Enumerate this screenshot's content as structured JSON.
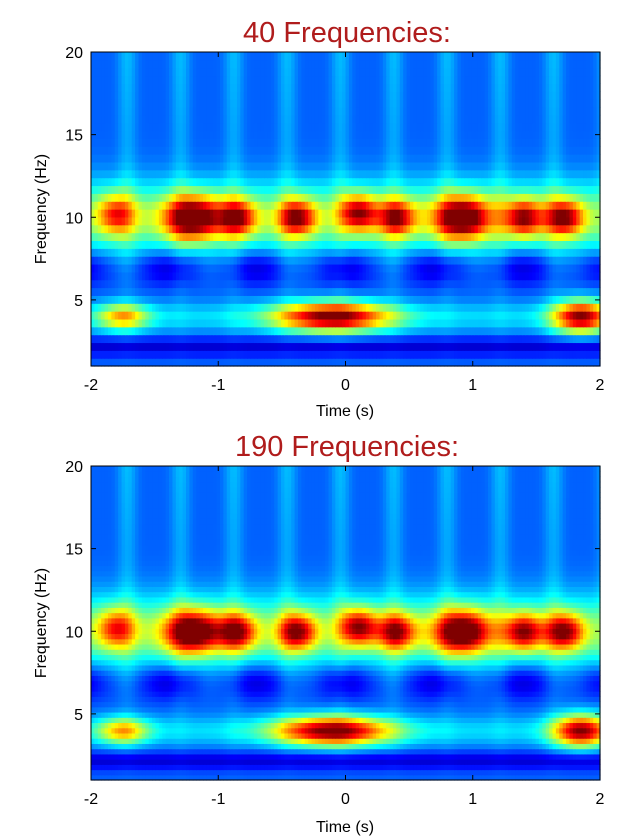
{
  "chart_data": [
    {
      "type": "heatmap",
      "title": "40 Frequencies:",
      "xlabel": "Time (s)",
      "ylabel": "Frequency (Hz)",
      "xlim": [
        -2,
        2
      ],
      "ylim": [
        1,
        20
      ],
      "xticks": [
        -2,
        -1,
        0,
        1,
        2
      ],
      "yticks": [
        5,
        10,
        15,
        20
      ],
      "n_frequencies": 40,
      "colormap": "jet",
      "blobs": [
        {
          "t": -0.1,
          "f": 4.0,
          "st": 0.45,
          "sf": 0.9,
          "a": 1.0
        },
        {
          "t": 1.85,
          "f": 4.0,
          "st": 0.22,
          "sf": 1.0,
          "a": 0.95
        },
        {
          "t": -1.75,
          "f": 4.0,
          "st": 0.2,
          "sf": 0.8,
          "a": 0.55
        },
        {
          "t": -1.2,
          "f": 10.0,
          "st": 0.22,
          "sf": 1.3,
          "a": 0.95
        },
        {
          "t": -0.85,
          "f": 10.0,
          "st": 0.15,
          "sf": 1.1,
          "a": 0.7
        },
        {
          "t": -0.38,
          "f": 10.0,
          "st": 0.15,
          "sf": 1.1,
          "a": 0.75
        },
        {
          "t": 0.1,
          "f": 10.3,
          "st": 0.15,
          "sf": 1.1,
          "a": 0.72
        },
        {
          "t": 0.4,
          "f": 10.0,
          "st": 0.15,
          "sf": 1.1,
          "a": 0.7
        },
        {
          "t": 0.92,
          "f": 10.0,
          "st": 0.22,
          "sf": 1.3,
          "a": 0.95
        },
        {
          "t": 1.4,
          "f": 10.0,
          "st": 0.15,
          "sf": 1.1,
          "a": 0.72
        },
        {
          "t": 1.72,
          "f": 10.0,
          "st": 0.15,
          "sf": 1.1,
          "a": 0.75
        },
        {
          "t": -1.8,
          "f": 10.2,
          "st": 0.15,
          "sf": 1.2,
          "a": 0.55
        }
      ]
    },
    {
      "type": "heatmap",
      "title": "190 Frequencies:",
      "xlabel": "Time (s)",
      "ylabel": "Frequency (Hz)",
      "xlim": [
        -2,
        2
      ],
      "ylim": [
        1,
        20
      ],
      "xticks": [
        -2,
        -1,
        0,
        1,
        2
      ],
      "yticks": [
        5,
        10,
        15,
        20
      ],
      "n_frequencies": 190,
      "colormap": "jet",
      "blobs": [
        {
          "t": -0.1,
          "f": 4.0,
          "st": 0.45,
          "sf": 0.9,
          "a": 1.0
        },
        {
          "t": 1.85,
          "f": 4.0,
          "st": 0.22,
          "sf": 1.0,
          "a": 0.95
        },
        {
          "t": -1.75,
          "f": 4.0,
          "st": 0.2,
          "sf": 0.8,
          "a": 0.55
        },
        {
          "t": -1.2,
          "f": 10.0,
          "st": 0.22,
          "sf": 1.3,
          "a": 0.95
        },
        {
          "t": -0.85,
          "f": 10.0,
          "st": 0.15,
          "sf": 1.1,
          "a": 0.7
        },
        {
          "t": -0.38,
          "f": 10.0,
          "st": 0.15,
          "sf": 1.1,
          "a": 0.75
        },
        {
          "t": 0.1,
          "f": 10.3,
          "st": 0.15,
          "sf": 1.1,
          "a": 0.72
        },
        {
          "t": 0.4,
          "f": 10.0,
          "st": 0.15,
          "sf": 1.1,
          "a": 0.7
        },
        {
          "t": 0.92,
          "f": 10.0,
          "st": 0.22,
          "sf": 1.3,
          "a": 0.95
        },
        {
          "t": 1.4,
          "f": 10.0,
          "st": 0.15,
          "sf": 1.1,
          "a": 0.72
        },
        {
          "t": 1.72,
          "f": 10.0,
          "st": 0.15,
          "sf": 1.1,
          "a": 0.75
        },
        {
          "t": -1.8,
          "f": 10.2,
          "st": 0.15,
          "sf": 1.2,
          "a": 0.55
        }
      ]
    }
  ]
}
